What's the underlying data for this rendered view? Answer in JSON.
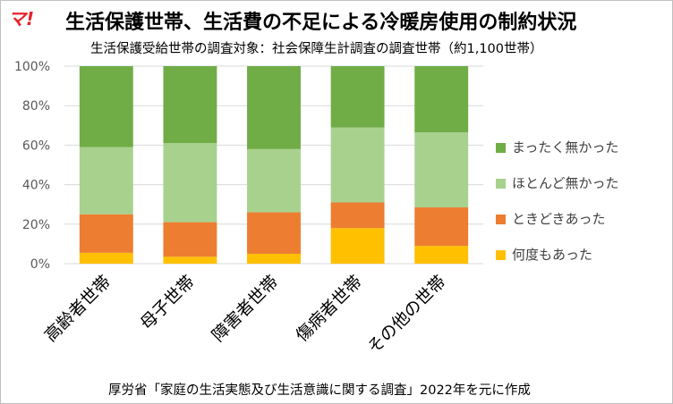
{
  "logo": "マ!",
  "chart_data": {
    "type": "bar",
    "stacked": true,
    "title": "生活保護世帯、生活費の不足による冷暖房使用の制約状況",
    "subtitle": "生活保護受給世帯の調査対象：社会保障生計調査の調査世帯（約1,100世帯）",
    "source": "厚労省「家庭の生活実態及び生活意識に関する調査」2022年を元に作成",
    "categories": [
      "高齢者世帯",
      "母子世帯",
      "障害者世帯",
      "傷病者世帯",
      "その他の世帯"
    ],
    "ylim": [
      0,
      100
    ],
    "yticks": [
      "0%",
      "20%",
      "40%",
      "60%",
      "80%",
      "100%"
    ],
    "grid": true,
    "legend_position": "right",
    "series": [
      {
        "name": "何度もあった",
        "color": "#ffc000",
        "values": [
          5.5,
          3.5,
          5,
          18,
          9
        ]
      },
      {
        "name": "ときどきあった",
        "color": "#ed7d31",
        "values": [
          19.5,
          17.5,
          21,
          13,
          19.5
        ]
      },
      {
        "name": "ほとんど無かった",
        "color": "#a9d18e",
        "values": [
          34,
          40,
          32,
          38,
          38
        ]
      },
      {
        "name": "まったく無かった",
        "color": "#70ad47",
        "values": [
          41,
          39,
          42,
          31,
          33.5
        ]
      }
    ]
  }
}
